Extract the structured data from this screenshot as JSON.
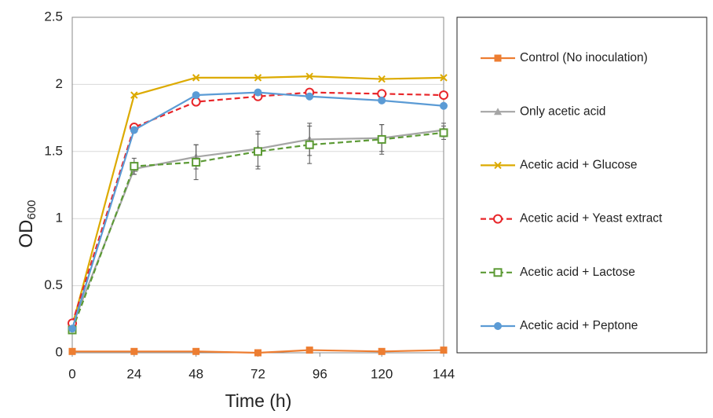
{
  "chart_data": {
    "type": "line",
    "xlabel": "Time (h)",
    "ylabel": "OD",
    "ylabel_sub": "600",
    "x": [
      0,
      24,
      48,
      72,
      92,
      120,
      144
    ],
    "xlim": [
      0,
      144
    ],
    "xticks": [
      0,
      24,
      48,
      72,
      96,
      120,
      144
    ],
    "ylim": [
      0,
      2.5
    ],
    "yticks": [
      0,
      0.5,
      1,
      1.5,
      2,
      2.5
    ],
    "grid": true,
    "legend": "right",
    "series": [
      {
        "name": "Control (No inoculation)",
        "color": "#ed7d31",
        "marker": "square",
        "dash": false,
        "values": [
          0.01,
          0.01,
          0.01,
          0.0,
          0.02,
          0.01,
          0.02
        ]
      },
      {
        "name": "Only acetic acid",
        "color": "#a5a5a5",
        "marker": "triangle",
        "dash": false,
        "values": [
          0.2,
          1.37,
          1.46,
          1.52,
          1.59,
          1.6,
          1.66
        ],
        "errors": [
          0.02,
          0.04,
          0.09,
          0.13,
          0.12,
          0.1,
          0.05
        ]
      },
      {
        "name": "Acetic acid + Glucose",
        "color": "#dcaa00",
        "marker": "x",
        "dash": false,
        "values": [
          0.2,
          1.92,
          2.05,
          2.05,
          2.06,
          2.04,
          2.05
        ]
      },
      {
        "name": "Acetic acid + Yeast extract",
        "color": "#e8262a",
        "marker": "open-circle",
        "dash": true,
        "values": [
          0.22,
          1.68,
          1.87,
          1.91,
          1.94,
          1.93,
          1.92
        ]
      },
      {
        "name": "Acetic acid + Lactose",
        "color": "#5c9a35",
        "marker": "open-square",
        "dash": true,
        "values": [
          0.17,
          1.39,
          1.42,
          1.5,
          1.55,
          1.59,
          1.64
        ],
        "errors": [
          0.02,
          0.06,
          0.13,
          0.13,
          0.14,
          0.11,
          0.05
        ]
      },
      {
        "name": "Acetic acid + Peptone",
        "color": "#5b9bd5",
        "marker": "circle",
        "dash": false,
        "values": [
          0.18,
          1.66,
          1.92,
          1.94,
          1.91,
          1.88,
          1.84
        ]
      }
    ]
  }
}
